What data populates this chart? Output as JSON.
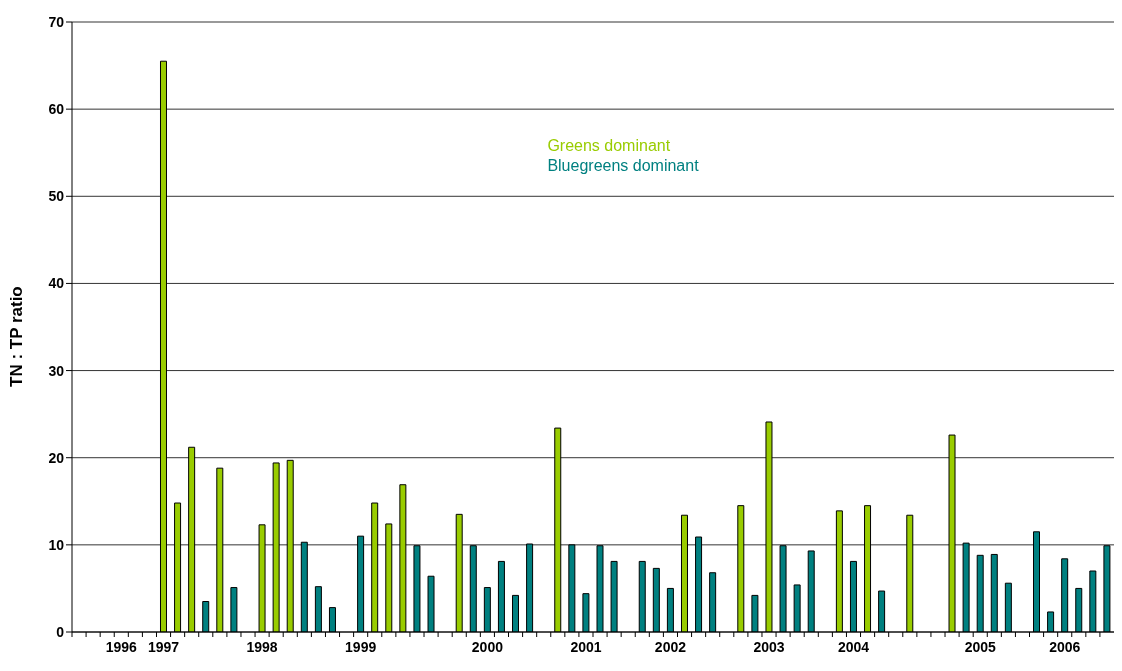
{
  "chart_data": {
    "type": "bar",
    "ylabel": "TN : TP ratio",
    "categories": [
      null,
      null,
      null,
      "1996",
      null,
      null,
      "1997",
      null,
      null,
      null,
      null,
      null,
      null,
      "1998",
      null,
      null,
      null,
      null,
      null,
      null,
      "1999",
      null,
      null,
      null,
      null,
      null,
      null,
      null,
      null,
      "2000",
      null,
      null,
      null,
      null,
      null,
      null,
      "2001",
      null,
      null,
      null,
      null,
      null,
      "2002",
      null,
      null,
      null,
      null,
      null,
      null,
      "2003",
      null,
      null,
      null,
      null,
      null,
      "2004",
      null,
      null,
      null,
      null,
      null,
      null,
      null,
      null,
      "2005",
      null,
      null,
      null,
      null,
      null,
      "2006",
      null,
      null,
      null
    ],
    "series": [
      {
        "name": "Greens dominant",
        "color": "#99cc00",
        "values": [
          null,
          null,
          null,
          null,
          null,
          null,
          65.5,
          14.8,
          21.2,
          null,
          18.8,
          null,
          null,
          12.3,
          19.4,
          19.7,
          null,
          null,
          null,
          null,
          null,
          14.8,
          12.4,
          16.9,
          null,
          null,
          null,
          13.5,
          null,
          null,
          null,
          null,
          null,
          null,
          23.4,
          null,
          null,
          null,
          null,
          null,
          null,
          null,
          null,
          13.4,
          null,
          null,
          null,
          14.5,
          null,
          24.1,
          null,
          null,
          null,
          null,
          13.9,
          null,
          14.5,
          null,
          null,
          13.4,
          null,
          null,
          22.6,
          null,
          null,
          null,
          null,
          null,
          null,
          null,
          null,
          null,
          null,
          null
        ]
      },
      {
        "name": "Bluegreens dominant",
        "color": "#008080",
        "values": [
          null,
          null,
          null,
          null,
          null,
          null,
          null,
          null,
          null,
          3.5,
          null,
          5.1,
          null,
          null,
          null,
          null,
          10.3,
          5.2,
          2.8,
          null,
          11.0,
          null,
          null,
          null,
          9.9,
          6.4,
          null,
          null,
          9.9,
          5.1,
          8.1,
          4.2,
          10.1,
          null,
          null,
          10.0,
          4.4,
          9.9,
          8.1,
          null,
          8.1,
          7.3,
          5.0,
          null,
          10.9,
          6.8,
          null,
          null,
          4.2,
          null,
          9.9,
          5.4,
          9.3,
          null,
          null,
          8.1,
          null,
          4.7,
          null,
          null,
          null,
          null,
          null,
          10.2,
          8.8,
          8.9,
          5.6,
          null,
          11.5,
          2.3,
          8.4,
          5.0,
          7.0,
          9.9
        ]
      }
    ],
    "ylim": [
      0,
      70
    ],
    "yticks": [
      0,
      10,
      20,
      30,
      40,
      50,
      60,
      70
    ],
    "grid": "y",
    "legend": "top"
  }
}
